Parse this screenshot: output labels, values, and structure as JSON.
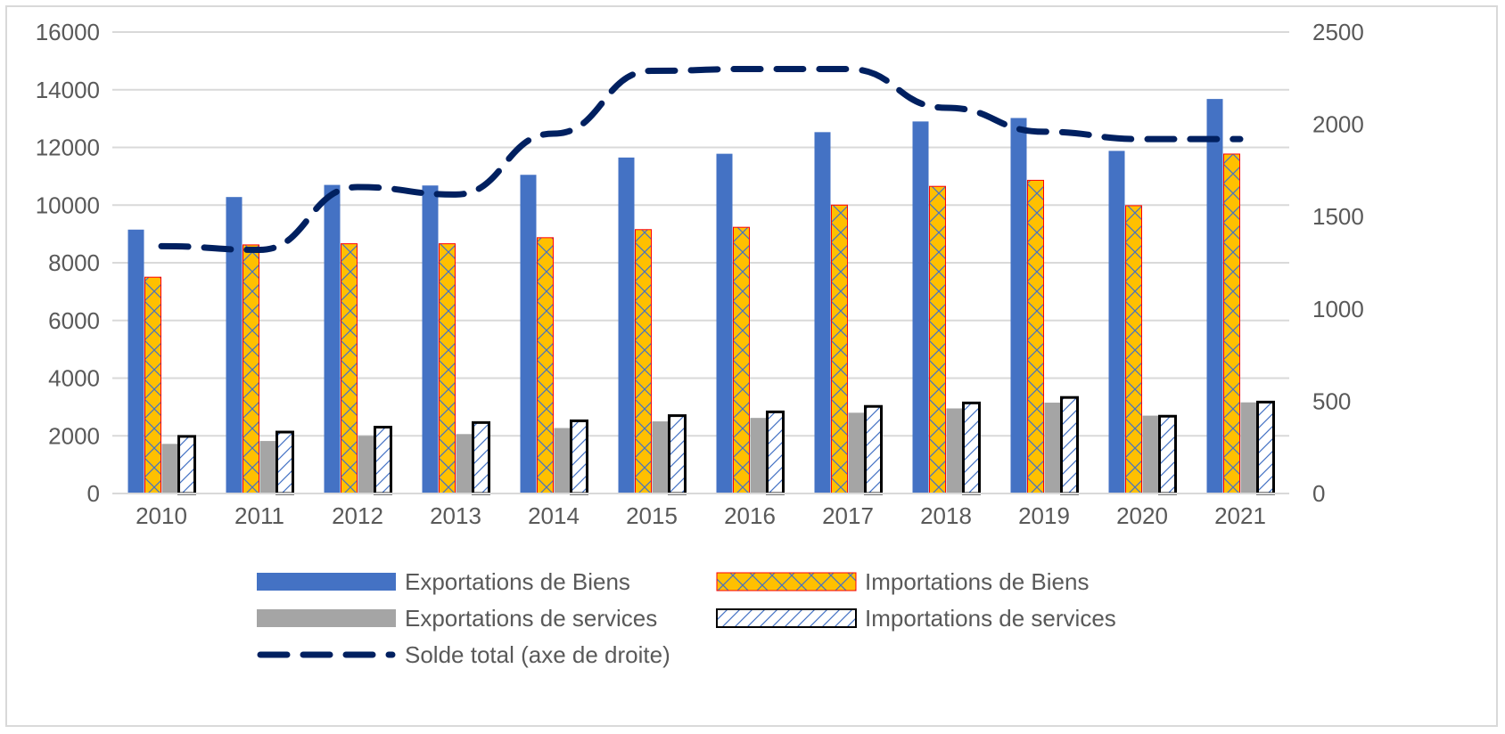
{
  "chart_data": {
    "type": "bar",
    "categories": [
      "2010",
      "2011",
      "2012",
      "2013",
      "2014",
      "2015",
      "2016",
      "2017",
      "2018",
      "2019",
      "2020",
      "2021"
    ],
    "series": [
      {
        "name": "Exportations de Biens",
        "axis": "left",
        "kind": "bar",
        "color": "#4472c4",
        "values": [
          9150,
          10280,
          10700,
          10680,
          11050,
          11650,
          11780,
          12530,
          12900,
          13020,
          11880,
          13680
        ]
      },
      {
        "name": "Importations de Biens",
        "axis": "left",
        "kind": "bar",
        "color": "#ffc000",
        "values": [
          7500,
          8620,
          8660,
          8660,
          8870,
          9150,
          9230,
          10000,
          10650,
          10860,
          9980,
          11770
        ]
      },
      {
        "name": "Exportations de services",
        "axis": "left",
        "kind": "bar",
        "color": "#a5a5a5",
        "values": [
          1720,
          1820,
          2000,
          2060,
          2270,
          2500,
          2620,
          2800,
          2950,
          3150,
          2700,
          3160
        ]
      },
      {
        "name": "Importations de services",
        "axis": "left",
        "kind": "bar",
        "color": "#ffffff",
        "values": [
          1980,
          2130,
          2300,
          2460,
          2520,
          2700,
          2830,
          3020,
          3140,
          3330,
          2680,
          3170
        ]
      },
      {
        "name": "Solde total (axe de droite)",
        "axis": "right",
        "kind": "line",
        "color": "#002060",
        "values": [
          1340,
          1320,
          1660,
          1620,
          1950,
          2290,
          2300,
          2300,
          2090,
          1960,
          1920,
          1920
        ]
      }
    ],
    "y_left": {
      "min": 0,
      "max": 16000,
      "ticks": [
        "0",
        "2000",
        "4000",
        "6000",
        "8000",
        "10000",
        "12000",
        "14000",
        "16000"
      ]
    },
    "y_right": {
      "min": 0,
      "max": 2500,
      "ticks": [
        "0",
        "500",
        "1000",
        "1500",
        "2000",
        "2500"
      ]
    },
    "grid": true,
    "legend_position": "bottom"
  }
}
